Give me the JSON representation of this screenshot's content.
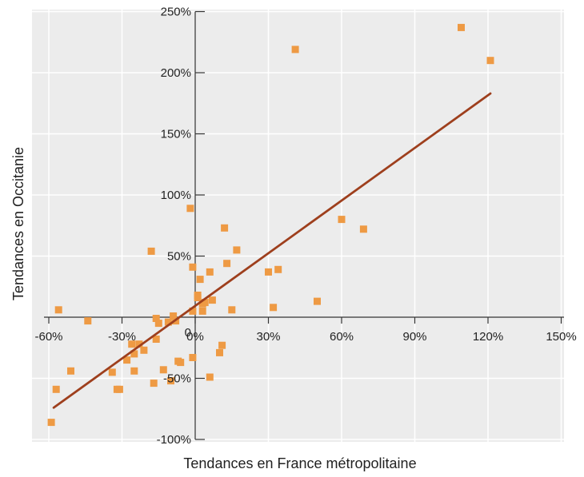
{
  "chart_data": {
    "type": "scatter",
    "title": "",
    "xlabel": "Tendances en France métropolitaine",
    "ylabel": "Tendances en Occitanie",
    "xlim": [
      -60,
      150
    ],
    "ylim": [
      -100,
      250
    ],
    "x_ticks": [
      -60,
      -30,
      0,
      30,
      60,
      90,
      120,
      150
    ],
    "x_tick_labels": [
      "-60%",
      "-30%",
      "0%",
      "30%",
      "60%",
      "90%",
      "120%",
      "150%"
    ],
    "y_ticks": [
      -100,
      -50,
      0,
      50,
      100,
      150,
      200,
      250
    ],
    "y_tick_labels": [
      "-100%",
      "-50%",
      "0",
      "50%",
      "100%",
      "150%",
      "200%",
      "250%"
    ],
    "grid": true,
    "series": [
      {
        "kind": "points",
        "points": [
          {
            "x": -59,
            "y": -86
          },
          {
            "x": -56,
            "y": 6
          },
          {
            "x": -57,
            "y": -59
          },
          {
            "x": -51,
            "y": -44
          },
          {
            "x": -44,
            "y": -3
          },
          {
            "x": -34,
            "y": -45
          },
          {
            "x": -32,
            "y": -59
          },
          {
            "x": -31,
            "y": -59
          },
          {
            "x": -28,
            "y": -35
          },
          {
            "x": -26,
            "y": -22
          },
          {
            "x": -25,
            "y": -30
          },
          {
            "x": -25,
            "y": -44
          },
          {
            "x": -23,
            "y": -22
          },
          {
            "x": -21,
            "y": -27
          },
          {
            "x": -18,
            "y": 54
          },
          {
            "x": -17,
            "y": -54
          },
          {
            "x": -16,
            "y": -1
          },
          {
            "x": -16,
            "y": -18
          },
          {
            "x": -15,
            "y": -5
          },
          {
            "x": -13,
            "y": -43
          },
          {
            "x": -11,
            "y": -4
          },
          {
            "x": -10,
            "y": -52
          },
          {
            "x": -9,
            "y": 1
          },
          {
            "x": -8,
            "y": -3
          },
          {
            "x": -7,
            "y": -36
          },
          {
            "x": -6,
            "y": -37
          },
          {
            "x": -2,
            "y": 89
          },
          {
            "x": -1,
            "y": 41
          },
          {
            "x": -1,
            "y": -33
          },
          {
            "x": -1,
            "y": 5
          },
          {
            "x": 1,
            "y": 18
          },
          {
            "x": 1,
            "y": 16
          },
          {
            "x": 2,
            "y": 31
          },
          {
            "x": 3,
            "y": 5
          },
          {
            "x": 3,
            "y": 11
          },
          {
            "x": 4,
            "y": 12
          },
          {
            "x": 6,
            "y": 37
          },
          {
            "x": 6,
            "y": -49
          },
          {
            "x": 7,
            "y": 14
          },
          {
            "x": 10,
            "y": -29
          },
          {
            "x": 11,
            "y": -23
          },
          {
            "x": 12,
            "y": 73
          },
          {
            "x": 13,
            "y": 44
          },
          {
            "x": 15,
            "y": 6
          },
          {
            "x": 17,
            "y": 55
          },
          {
            "x": 30,
            "y": 37
          },
          {
            "x": 32,
            "y": 8
          },
          {
            "x": 34,
            "y": 39
          },
          {
            "x": 41,
            "y": 219
          },
          {
            "x": 50,
            "y": 13
          },
          {
            "x": 60,
            "y": 80
          },
          {
            "x": 69,
            "y": 72
          },
          {
            "x": 109,
            "y": 237
          },
          {
            "x": 121,
            "y": 210
          }
        ]
      },
      {
        "kind": "trend_line",
        "points": [
          {
            "x": -58,
            "y": -74
          },
          {
            "x": 121,
            "y": 183
          }
        ]
      }
    ],
    "colors": {
      "background": "#ffffff",
      "plot_area": "#ececec",
      "gridline": "#ffffff",
      "point": "#ee9a44",
      "trend_line": "#9e3f1d",
      "text": "#222222"
    }
  }
}
